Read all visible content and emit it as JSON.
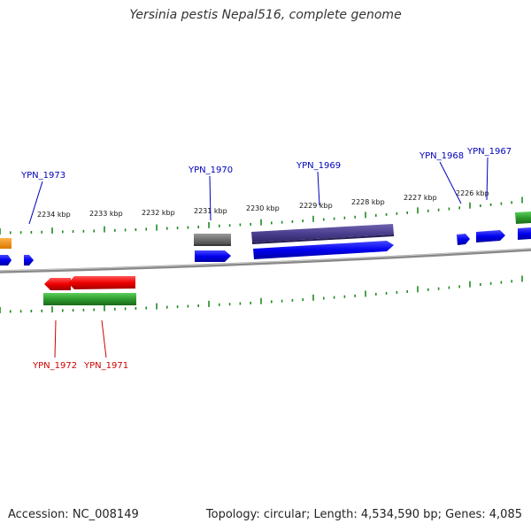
{
  "title": "Yersinia pestis Nepal516, complete genome",
  "accession_text": "Accession: NC_008149",
  "topology_text": "Topology: circular; Length: 4,534,590 bp; Genes: 4,085",
  "colors": {
    "forward_strand_cds": "#0000ee",
    "reverse_strand_cds": "#ee0000",
    "forward_label": "#0000bb",
    "reverse_label": "#cc0000",
    "tick": "#1f8a1f",
    "backbone": "#888888",
    "gray_feature": "#777777",
    "purple_feature": "#4b3f8f",
    "green_feature": "#2e9a2e",
    "orange_feature": "#ef8a00"
  },
  "kbp_labels": [
    "2234 kbp",
    "2233 kbp",
    "2232 kbp",
    "2231 kbp",
    "2230 kbp",
    "2229 kbp",
    "2228 kbp",
    "2227 kbp",
    "2226 kbp"
  ],
  "forward_genes": [
    "YPN_1973",
    "YPN_1970",
    "YPN_1969",
    "YPN_1968",
    "YPN_1967"
  ],
  "reverse_genes": [
    "YPN_1972",
    "YPN_1971"
  ]
}
